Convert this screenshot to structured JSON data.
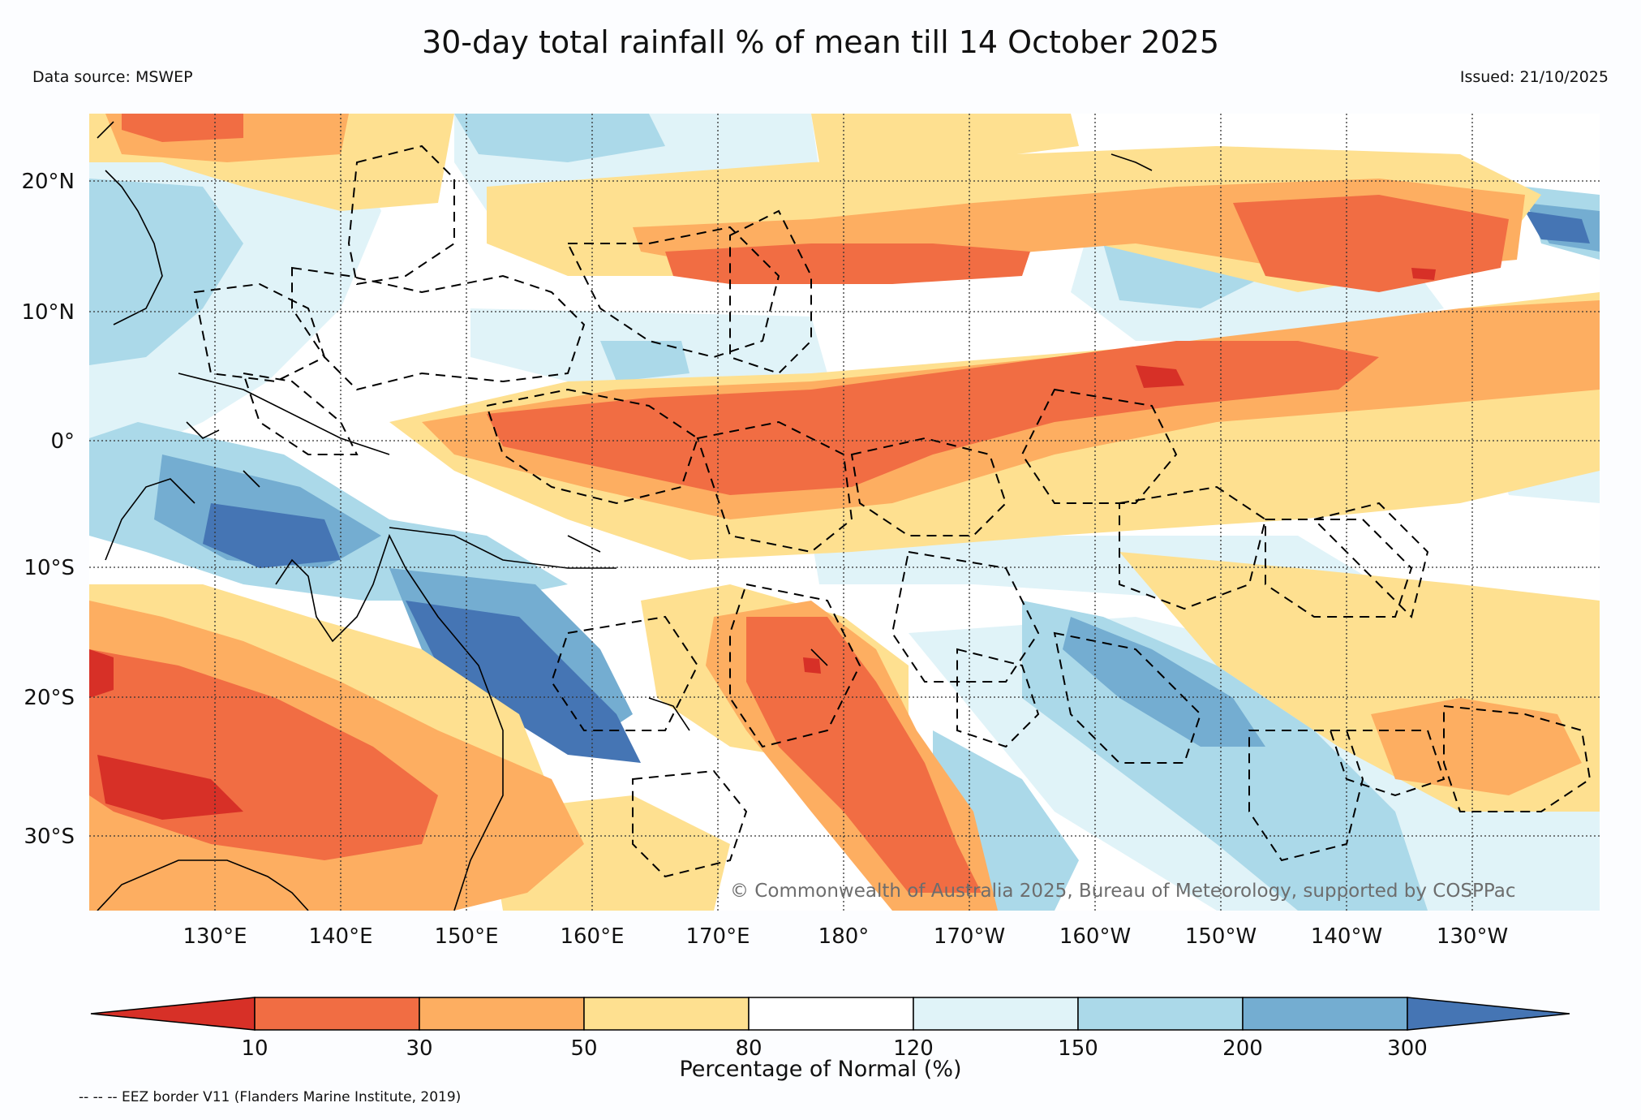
{
  "header": {
    "title": "30-day total rainfall % of mean till 14 October 2025",
    "data_source": "Data source: MSWEP",
    "issued": "Issued: 21/10/2025"
  },
  "map": {
    "lon_labels": [
      "130°E",
      "140°E",
      "150°E",
      "160°E",
      "170°E",
      "180°",
      "170°W",
      "160°W",
      "150°W",
      "140°W",
      "130°W"
    ],
    "lat_labels": [
      "20°N",
      "10°N",
      "0°",
      "10°S",
      "20°S",
      "30°S"
    ],
    "copyright": "© Commonwealth of Australia 2025, Bureau of Meteorology, supported by COSPPac",
    "colors": {
      "deep_red": "#d73027",
      "red": "#f16d43",
      "orange": "#fdae61",
      "yellow": "#fee090",
      "white": "#ffffff",
      "pale_blue": "#e0f3f8",
      "light_blue": "#abd9e9",
      "mid_blue": "#74add1",
      "dark_blue": "#4575b4"
    }
  },
  "colorbar": {
    "ticks": [
      "10",
      "30",
      "50",
      "80",
      "120",
      "150",
      "200",
      "300"
    ],
    "colors": [
      "#d73027",
      "#f16d43",
      "#fdae61",
      "#fee090",
      "#ffffff",
      "#e0f3f8",
      "#abd9e9",
      "#74add1",
      "#4575b4"
    ],
    "label": "Percentage of Normal (%)"
  },
  "footer": {
    "eez_note": "-- -- -- EEZ border V11 (Flanders Marine Institute, 2019)"
  }
}
